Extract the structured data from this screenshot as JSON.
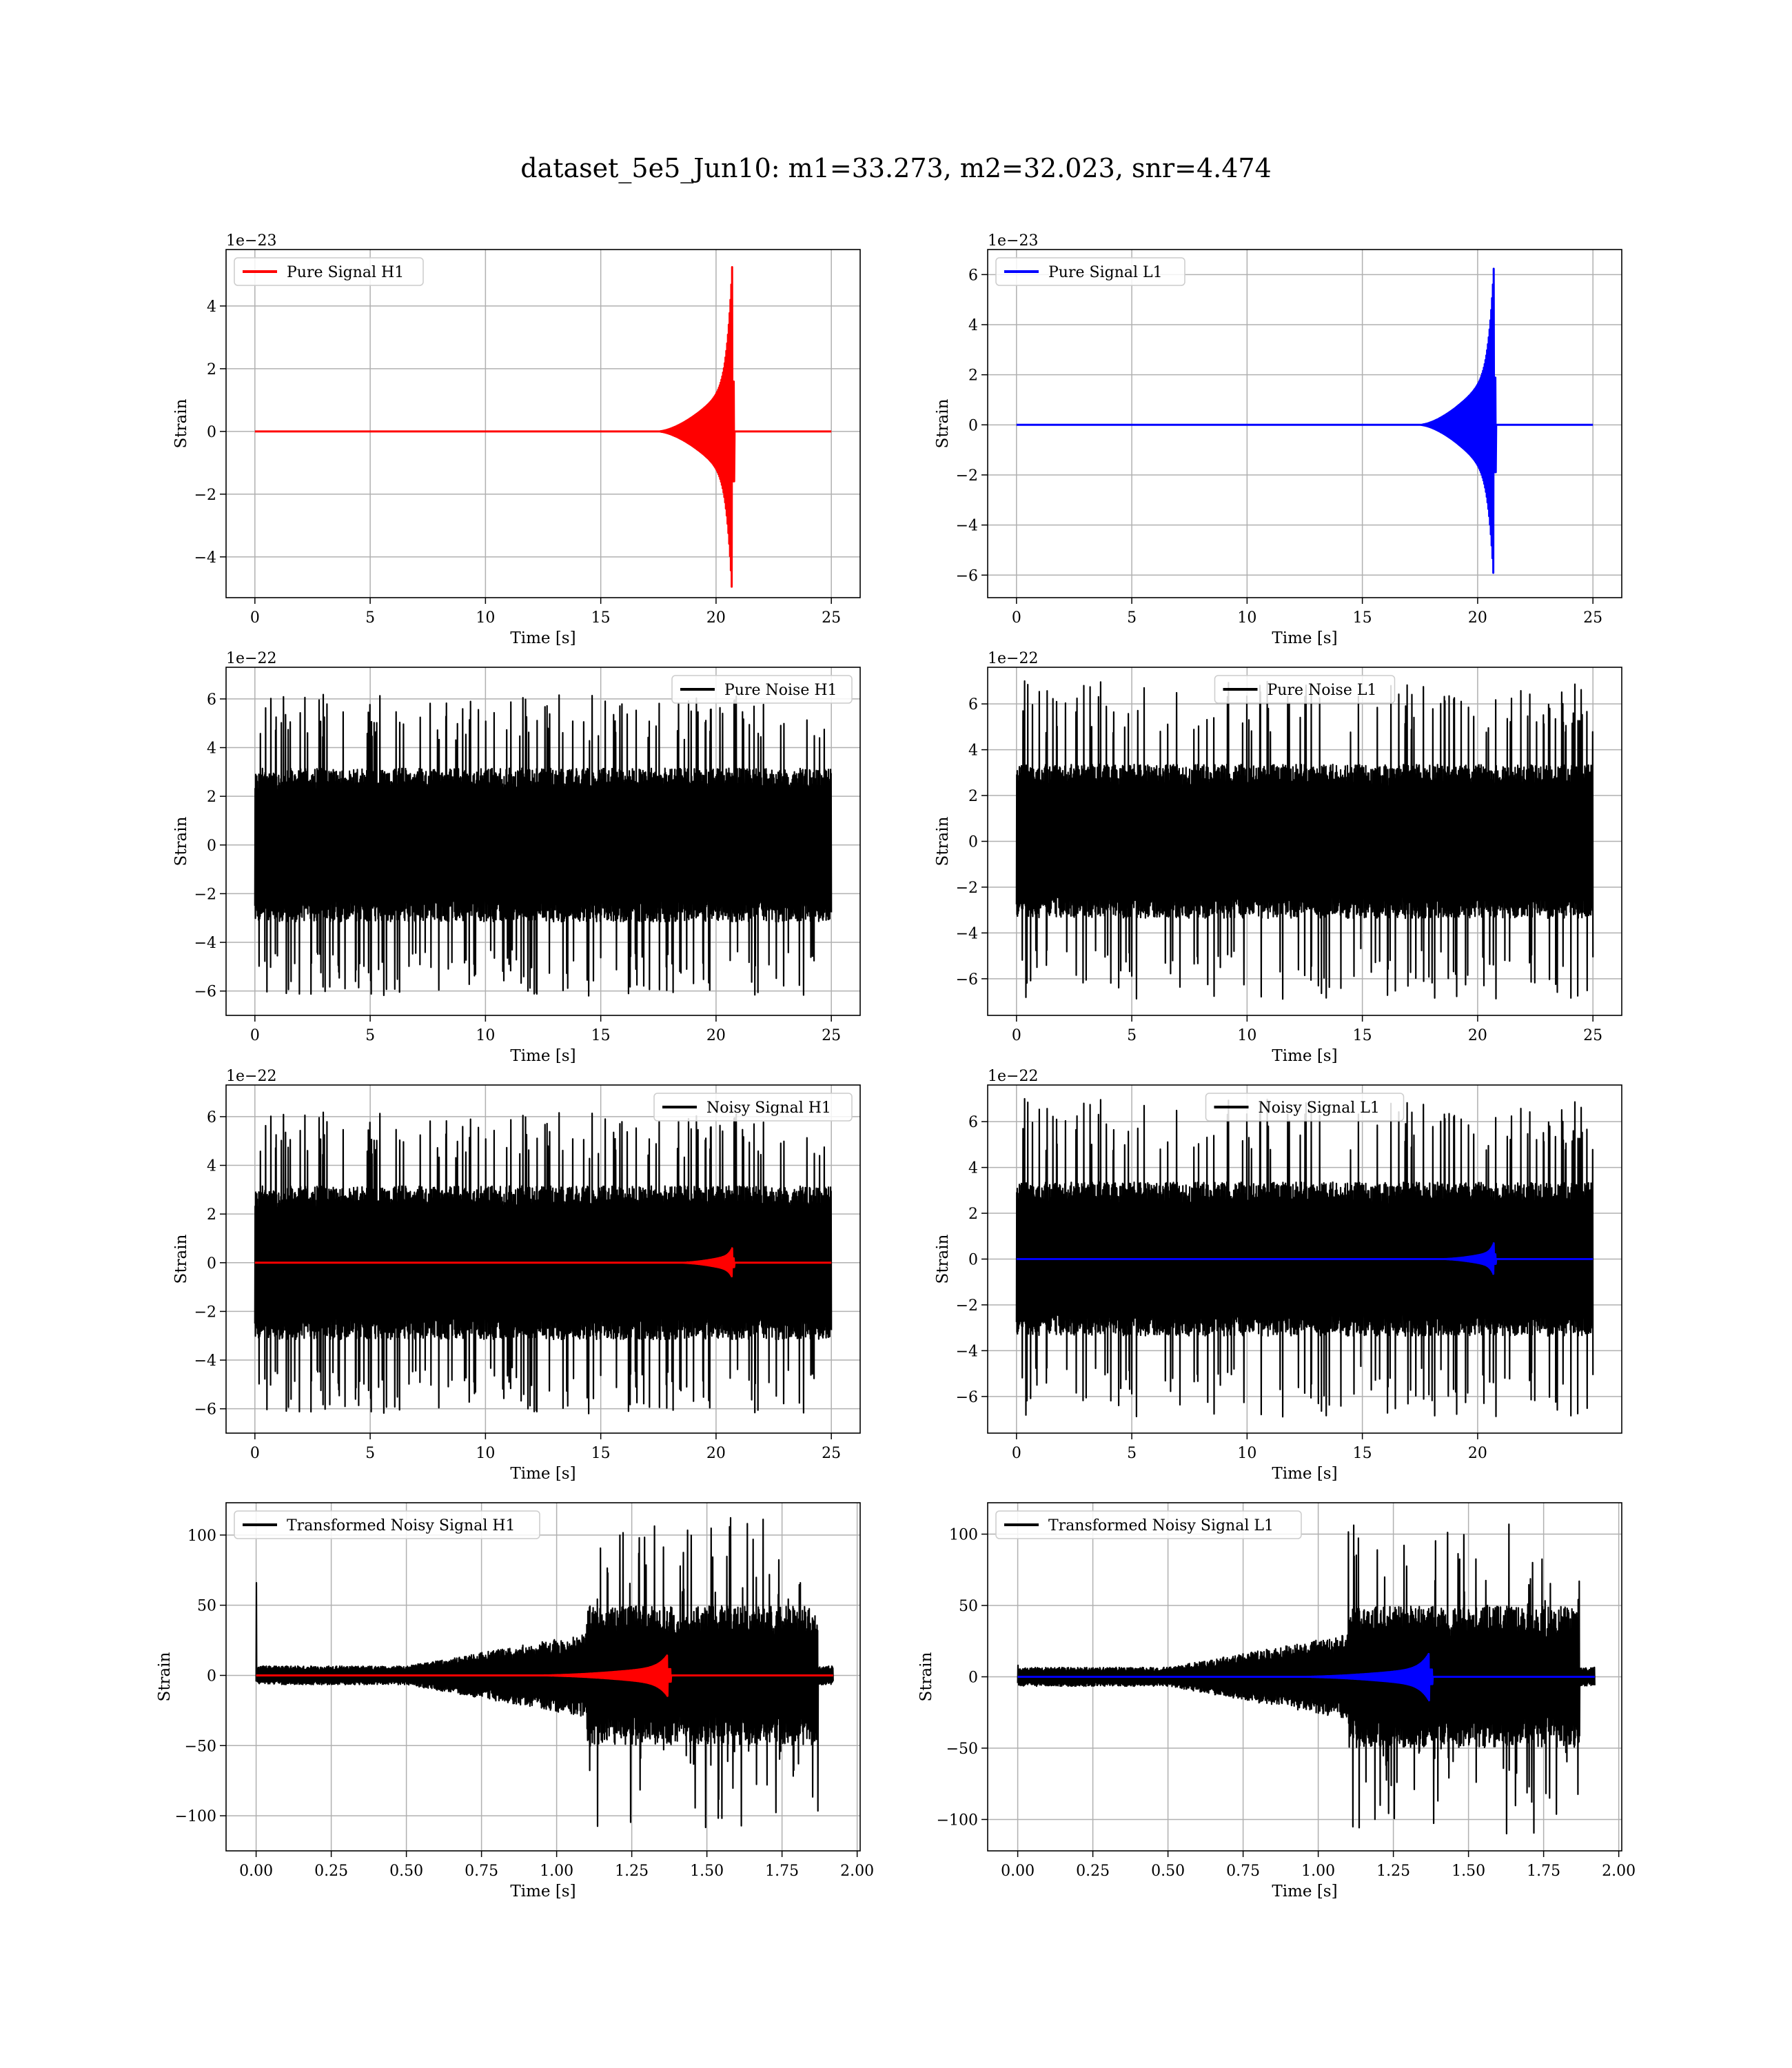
{
  "figure": {
    "title": "dataset_5e5_Jun10: m1=33.273, m2=32.023, snr=4.474"
  },
  "colors": {
    "h1_signal": "#ff0000",
    "l1_signal": "#0000ff",
    "noise": "#000000",
    "grid": "#b0b0b0",
    "legend_border": "#cccccc"
  },
  "chart_data": [
    {
      "id": "pure-signal-h1",
      "type": "line",
      "legend_position": "upper left",
      "xlabel": "Time [s]",
      "ylabel": "Strain",
      "offset_label": "1e−23",
      "xlim": [
        -1.25,
        26.25
      ],
      "ylim": [
        -5.3,
        5.8
      ],
      "xticks": [
        0,
        5,
        10,
        15,
        20,
        25
      ],
      "xtick_labels": [
        "0",
        "5",
        "10",
        "15",
        "20",
        "25"
      ],
      "yticks": [
        -4,
        -2,
        0,
        2,
        4
      ],
      "ytick_labels": [
        "−4",
        "−2",
        "0",
        "2",
        "4"
      ],
      "grid": true,
      "series": [
        {
          "name": "Pure Signal H1",
          "color": "#ff0000",
          "kind": "chirp",
          "x_start": 0,
          "x_end": 25,
          "onset": 17.5,
          "merger": 20.7,
          "ringdown_end": 20.8,
          "amplitude_before_merger": 1.6,
          "peak": 5.3,
          "legend": true
        }
      ]
    },
    {
      "id": "pure-signal-l1",
      "type": "line",
      "legend_position": "upper left",
      "xlabel": "Time [s]",
      "ylabel": "Strain",
      "offset_label": "1e−23",
      "xlim": [
        -1.25,
        26.25
      ],
      "ylim": [
        -6.9,
        7.0
      ],
      "xticks": [
        0,
        5,
        10,
        15,
        20,
        25
      ],
      "xtick_labels": [
        "0",
        "5",
        "10",
        "15",
        "20",
        "25"
      ],
      "yticks": [
        -6,
        -4,
        -2,
        0,
        2,
        4,
        6
      ],
      "ytick_labels": [
        "−6",
        "−4",
        "−2",
        "0",
        "2",
        "4",
        "6"
      ],
      "grid": true,
      "series": [
        {
          "name": "Pure Signal L1",
          "color": "#0000ff",
          "kind": "chirp",
          "x_start": 0,
          "x_end": 25,
          "onset": 17.5,
          "merger": 20.7,
          "ringdown_end": 20.8,
          "amplitude_before_merger": 2.2,
          "peak": 6.3,
          "legend": true
        }
      ]
    },
    {
      "id": "pure-noise-h1",
      "type": "line",
      "legend_position": "upper right",
      "xlabel": "Time [s]",
      "ylabel": "Strain",
      "offset_label": "1e−22",
      "xlim": [
        -1.25,
        26.25
      ],
      "ylim": [
        -7.0,
        7.3
      ],
      "xticks": [
        0,
        5,
        10,
        15,
        20,
        25
      ],
      "xtick_labels": [
        "0",
        "5",
        "10",
        "15",
        "20",
        "25"
      ],
      "yticks": [
        -6,
        -4,
        -2,
        0,
        2,
        4,
        6
      ],
      "ytick_labels": [
        "−6",
        "−4",
        "−2",
        "0",
        "2",
        "4",
        "6"
      ],
      "grid": true,
      "series": [
        {
          "name": "Pure Noise H1",
          "color": "#000000",
          "kind": "noise",
          "x_start": 0,
          "x_end": 25,
          "band": 3.0,
          "spike_max": 6.2,
          "spike_min": -6.2,
          "seed": 11,
          "legend": true
        }
      ]
    },
    {
      "id": "pure-noise-l1",
      "type": "line",
      "legend_position": "upper center",
      "xlabel": "Time [s]",
      "ylabel": "Strain",
      "offset_label": "1e−22",
      "xlim": [
        -1.25,
        26.25
      ],
      "ylim": [
        -7.6,
        7.6
      ],
      "xticks": [
        0,
        5,
        10,
        15,
        20,
        25
      ],
      "xtick_labels": [
        "0",
        "5",
        "10",
        "15",
        "20",
        "25"
      ],
      "yticks": [
        -6,
        -4,
        -2,
        0,
        2,
        4,
        6
      ],
      "ytick_labels": [
        "−6",
        "−4",
        "−2",
        "0",
        "2",
        "4",
        "6"
      ],
      "grid": true,
      "series": [
        {
          "name": "Pure Noise L1",
          "color": "#000000",
          "kind": "noise",
          "x_start": 0,
          "x_end": 25,
          "band": 3.2,
          "spike_max": 7.0,
          "spike_min": -6.9,
          "seed": 23,
          "legend": true
        }
      ]
    },
    {
      "id": "noisy-signal-h1",
      "type": "line",
      "legend_position": "upper right",
      "xlabel": "Time [s]",
      "ylabel": "Strain",
      "offset_label": "1e−22",
      "xlim": [
        -1.25,
        26.25
      ],
      "ylim": [
        -7.0,
        7.3
      ],
      "xticks": [
        0,
        5,
        10,
        15,
        20,
        25
      ],
      "xtick_labels": [
        "0",
        "5",
        "10",
        "15",
        "20",
        "25"
      ],
      "yticks": [
        -6,
        -4,
        -2,
        0,
        2,
        4,
        6
      ],
      "ytick_labels": [
        "−6",
        "−4",
        "−2",
        "0",
        "2",
        "4",
        "6"
      ],
      "grid": true,
      "series": [
        {
          "name": "Noisy Signal H1",
          "color": "#000000",
          "kind": "noise",
          "x_start": 0,
          "x_end": 25,
          "band": 3.0,
          "spike_max": 6.2,
          "spike_min": -6.2,
          "seed": 11,
          "legend": true
        },
        {
          "name": "",
          "color": "#ff0000",
          "kind": "chirp",
          "x_start": 0,
          "x_end": 25,
          "onset": 18.5,
          "merger": 20.7,
          "ringdown_end": 20.8,
          "amplitude_before_merger": 0.3,
          "peak": 0.6,
          "legend": false
        }
      ]
    },
    {
      "id": "noisy-signal-l1",
      "type": "line",
      "legend_position": "upper center",
      "xlabel": "Time [s]",
      "ylabel": "Strain",
      "offset_label": "1e−22",
      "xlim": [
        -1.25,
        26.25
      ],
      "ylim": [
        -7.6,
        7.6
      ],
      "xticks": [
        0,
        5,
        10,
        15,
        20
      ],
      "xtick_labels": [
        "0",
        "5",
        "10",
        "15",
        "20"
      ],
      "yticks": [
        -6,
        -4,
        -2,
        0,
        2,
        4,
        6
      ],
      "ytick_labels": [
        "−6",
        "−4",
        "−2",
        "0",
        "2",
        "4",
        "6"
      ],
      "grid": true,
      "series": [
        {
          "name": "Noisy Signal L1",
          "color": "#000000",
          "kind": "noise",
          "x_start": 0,
          "x_end": 25,
          "band": 3.2,
          "spike_max": 7.0,
          "spike_min": -6.9,
          "seed": 23,
          "legend": true
        },
        {
          "name": "",
          "color": "#0000ff",
          "kind": "chirp",
          "x_start": 0,
          "x_end": 25,
          "onset": 18.5,
          "merger": 20.7,
          "ringdown_end": 20.8,
          "amplitude_before_merger": 0.3,
          "peak": 0.7,
          "legend": false
        }
      ]
    },
    {
      "id": "transformed-noisy-signal-h1",
      "type": "line",
      "legend_position": "upper left",
      "xlabel": "Time [s]",
      "ylabel": "Strain",
      "offset_label": "",
      "xlim": [
        -0.1,
        2.01
      ],
      "ylim": [
        -125,
        123
      ],
      "xticks": [
        0,
        0.25,
        0.5,
        0.75,
        1.0,
        1.25,
        1.5,
        1.75,
        2.0
      ],
      "xtick_labels": [
        "0.00",
        "0.25",
        "0.50",
        "0.75",
        "1.00",
        "1.25",
        "1.50",
        "1.75",
        "2.00"
      ],
      "yticks": [
        -100,
        -50,
        0,
        50,
        100
      ],
      "ytick_labels": [
        "−100",
        "−50",
        "0",
        "50",
        "100"
      ],
      "grid": true,
      "series": [
        {
          "name": "Transformed Noisy Signal H1",
          "color": "#000000",
          "kind": "whitened",
          "x_start": 0,
          "x_end": 1.92,
          "low_band": 6,
          "ramp_start": 0.5,
          "ramp_end": 1.1,
          "high_band": 45,
          "spike_max": 113,
          "spike_min": -109,
          "x_cut": 1.87,
          "start_spike": 66,
          "seed": 37,
          "legend": true
        },
        {
          "name": "",
          "color": "#ff0000",
          "kind": "chirp",
          "x_start": 0,
          "x_end": 1.92,
          "onset": 0.95,
          "merger": 1.37,
          "ringdown_end": 1.38,
          "amplitude_before_merger": 6,
          "peak": 15,
          "legend": false
        }
      ]
    },
    {
      "id": "transformed-noisy-signal-l1",
      "type": "line",
      "legend_position": "upper left",
      "xlabel": "Time [s]",
      "ylabel": "Strain",
      "offset_label": "",
      "xlim": [
        -0.1,
        2.01
      ],
      "ylim": [
        -122,
        122
      ],
      "xticks": [
        0,
        0.25,
        0.5,
        0.75,
        1.0,
        1.25,
        1.5,
        1.75,
        2.0
      ],
      "xtick_labels": [
        "0.00",
        "0.25",
        "0.50",
        "0.75",
        "1.00",
        "1.25",
        "1.50",
        "1.75",
        "2.00"
      ],
      "yticks": [
        -100,
        -50,
        0,
        50,
        100
      ],
      "ytick_labels": [
        "−100",
        "−50",
        "0",
        "50",
        "100"
      ],
      "grid": true,
      "series": [
        {
          "name": "Transformed Noisy Signal L1",
          "color": "#000000",
          "kind": "whitened",
          "x_start": 0,
          "x_end": 1.92,
          "low_band": 6,
          "ramp_start": 0.5,
          "ramp_end": 1.1,
          "high_band": 45,
          "spike_max": 108,
          "spike_min": -110,
          "x_cut": 1.87,
          "start_spike": 8,
          "seed": 53,
          "legend": true
        },
        {
          "name": "",
          "color": "#0000ff",
          "kind": "chirp",
          "x_start": 0,
          "x_end": 1.92,
          "onset": 0.95,
          "merger": 1.37,
          "ringdown_end": 1.38,
          "amplitude_before_merger": 6,
          "peak": 17,
          "legend": false
        }
      ]
    }
  ]
}
